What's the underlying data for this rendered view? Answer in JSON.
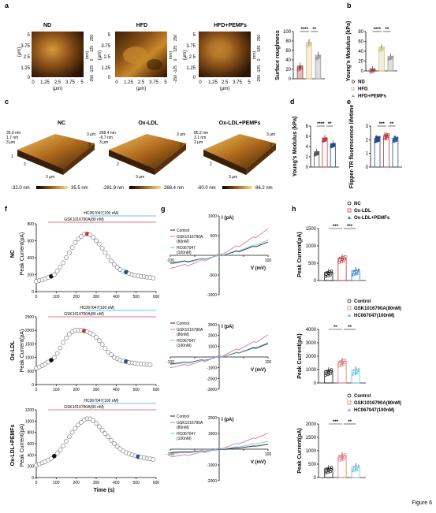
{
  "figure_label": "Figure 6",
  "panels": {
    "a": {
      "letter": "a",
      "titles": [
        "ND",
        "HFD",
        "HFD+PEMFs"
      ],
      "axis_unit": "(μm)",
      "z_unit": "(nm)",
      "xy_ticks": [
        "0",
        "1.25",
        "2.5",
        "3.75",
        "5"
      ],
      "z_ticks": [
        "250",
        "125",
        "0",
        "-125",
        "-250"
      ]
    },
    "b": {
      "letter": "b"
    },
    "c": {
      "letter": "c",
      "titles": [
        "NC",
        "Ox-LDL",
        "Ox-LDL+PEMFs"
      ],
      "heights": [
        {
          "z": "35.5 nm",
          "a": "1.7 nm",
          "b": "3 μm",
          "min": "-32.0 nm",
          "max": "35.5 nm"
        },
        {
          "z": "268.4 nm",
          "a": "-6.7 nm",
          "b": "3 μm",
          "min": "-281.9 nm",
          "max": "268.4 nm"
        },
        {
          "z": "86.2 nm",
          "a": "3.1 nm",
          "b": "3 μm",
          "min": "-80.0 nm",
          "max": "86.2 nm"
        }
      ],
      "axis_ticks": [
        "1",
        "2",
        "3 μm"
      ]
    },
    "d": {
      "letter": "d"
    },
    "e": {
      "letter": "e"
    },
    "f": {
      "letter": "f",
      "row_labels": [
        "NC",
        "Ox-LDL",
        "Ox-LDL+PEMFs"
      ],
      "ylabel": "Peak Current(pA)",
      "xlabel": "Time (s)",
      "drug1": "GSK1016790A(80 nM)",
      "drug2": "HC067047(100 nM)"
    },
    "g": {
      "letter": "g",
      "legend": [
        "Control",
        "GSK1016790A\n(80nM)",
        "HC067047\n(100nM)"
      ],
      "ylabel": "I (pA)",
      "xlabel": "V (mV)"
    },
    "h": {
      "letter": "h",
      "legend_top": [
        "NC",
        "Ox-LDL",
        "Ox-LDL+PEMFs"
      ],
      "legend_rows": [
        "Control",
        "GSK1016790A(80nM)",
        "HC067047(100nM)"
      ],
      "ylabel": "Peak Current(pA)"
    }
  },
  "colors": {
    "control": "#222222",
    "gsk": "#e07a80",
    "hc": "#6ec3e8",
    "nd": "#9b3b3b",
    "hfd": "#d8c58a",
    "pemf": "#9a9a9a",
    "nc_blue": "#1f4e8c",
    "oxldl_red": "#c23a3a",
    "pemf_blue": "#2f7fd6"
  },
  "chart_data": [
    {
      "type": "bar",
      "panel": "a",
      "ylabel": "Surface roughness",
      "categories": [
        "ND",
        "HFD",
        "HFD+PEMFs"
      ],
      "values": [
        27,
        77,
        50
      ],
      "ylim": [
        0,
        100
      ],
      "yticks": [
        0,
        20,
        40,
        60,
        80,
        100
      ],
      "significance": [
        "****",
        "**"
      ]
    },
    {
      "type": "bar",
      "panel": "b",
      "ylabel": "Young's Modulus (kPa)",
      "categories": [
        "ND",
        "HFD",
        "HFD+PEMFs"
      ],
      "values": [
        4,
        48,
        30
      ],
      "ylim": [
        0,
        80
      ],
      "yticks": [
        0,
        20,
        40,
        60,
        80
      ],
      "significance": [
        "****",
        "**"
      ],
      "legend": [
        "ND",
        "HFD",
        "HFD+PEMFs"
      ]
    },
    {
      "type": "bar",
      "panel": "d",
      "ylabel": "Young's Modulus (kPa)",
      "categories": [
        "NC",
        "Ox-LDL",
        "Ox-LDL+PEMFs"
      ],
      "values": [
        3,
        5.7,
        4.6
      ],
      "ylim": [
        0,
        8
      ],
      "yticks": [
        0,
        2,
        4,
        6,
        8
      ],
      "significance": [
        "****",
        "**"
      ]
    },
    {
      "type": "bar",
      "panel": "e",
      "ylabel": "Flipper-TR fluorescence lifetime",
      "categories": [
        "NC",
        "Ox-LDL",
        "Ox-LDL+PEMFs"
      ],
      "values": [
        2.1,
        2.3,
        2.1
      ],
      "ylim": [
        0,
        3
      ],
      "yticks": [
        0,
        1,
        2,
        3
      ],
      "significance": [
        "***",
        "**"
      ]
    },
    {
      "type": "scatter",
      "panel": "f1",
      "x": [
        0,
        15,
        30,
        45,
        60,
        75,
        90,
        105,
        120,
        135,
        150,
        165,
        180,
        195,
        210,
        225,
        240,
        255,
        270,
        285,
        300,
        315,
        330,
        345,
        360,
        375,
        390,
        405,
        420,
        435,
        450,
        465,
        480,
        495,
        510,
        525,
        540,
        555,
        570,
        585
      ],
      "y": [
        120,
        130,
        140,
        150,
        165,
        180,
        200,
        240,
        290,
        340,
        400,
        460,
        520,
        580,
        620,
        650,
        680,
        680,
        670,
        640,
        600,
        560,
        510,
        460,
        410,
        360,
        320,
        290,
        260,
        240,
        230,
        210,
        200,
        190,
        185,
        180,
        175,
        170,
        165,
        160
      ],
      "xlim": [
        0,
        600
      ],
      "ylim": [
        0,
        800
      ],
      "xticks": [
        0,
        100,
        200,
        300,
        400,
        500,
        600
      ],
      "yticks": [
        0,
        200,
        400,
        600,
        800
      ],
      "drug1_span": [
        60,
        600
      ],
      "drug2_span": [
        270,
        600
      ],
      "markers": {
        "black": 75,
        "red": 255,
        "blue": 450
      }
    },
    {
      "type": "scatter",
      "panel": "f2",
      "x": [
        0,
        15,
        30,
        45,
        60,
        75,
        90,
        105,
        120,
        135,
        150,
        165,
        180,
        195,
        210,
        225,
        240,
        255,
        270,
        285,
        300,
        315,
        330,
        345,
        360,
        375,
        390,
        405,
        420,
        435,
        450,
        465,
        480,
        495,
        510,
        525,
        540,
        555,
        570
      ],
      "y": [
        600,
        650,
        700,
        760,
        830,
        900,
        1000,
        1150,
        1350,
        1550,
        1720,
        1860,
        1950,
        2000,
        2010,
        2000,
        1980,
        1950,
        1900,
        1830,
        1740,
        1620,
        1480,
        1330,
        1200,
        1100,
        1000,
        950,
        900,
        870,
        850,
        820,
        800,
        780,
        770,
        760,
        750,
        740,
        730
      ],
      "xlim": [
        0,
        600
      ],
      "ylim": [
        0,
        2500
      ],
      "xticks": [
        0,
        100,
        200,
        300,
        400,
        500,
        600
      ],
      "yticks": [
        0,
        500,
        1000,
        1500,
        2000,
        2500
      ],
      "drug1_span": [
        60,
        600
      ],
      "drug2_span": [
        250,
        600
      ],
      "markers": {
        "black": 75,
        "red": 240,
        "blue": 450
      }
    },
    {
      "type": "scatter",
      "panel": "f3",
      "x": [
        0,
        15,
        30,
        45,
        60,
        75,
        90,
        105,
        120,
        135,
        150,
        165,
        180,
        195,
        210,
        225,
        240,
        255,
        270,
        285,
        300,
        315,
        330,
        345,
        360,
        375,
        390,
        405,
        420,
        435,
        450,
        465,
        480,
        495,
        510,
        525,
        540,
        555,
        570,
        585
      ],
      "y": [
        220,
        240,
        260,
        280,
        310,
        340,
        380,
        430,
        490,
        560,
        640,
        720,
        800,
        870,
        930,
        980,
        1020,
        1040,
        1040,
        1010,
        960,
        900,
        840,
        780,
        720,
        660,
        600,
        550,
        510,
        470,
        440,
        420,
        400,
        385,
        370,
        360,
        350,
        340,
        330,
        320
      ],
      "xlim": [
        0,
        600
      ],
      "ylim": [
        0,
        1200
      ],
      "xticks": [
        0,
        100,
        200,
        300,
        400,
        500,
        600
      ],
      "yticks": [
        0,
        200,
        400,
        600,
        800,
        1000,
        1200
      ],
      "drug1_span": [
        60,
        600
      ],
      "drug2_span": [
        270,
        600
      ],
      "markers": {
        "black": 90,
        "red": 262,
        "blue": 510
      }
    },
    {
      "type": "line",
      "panel": "g1",
      "x": [
        -100,
        100
      ],
      "xlim": [
        -100,
        100
      ],
      "ylim": [
        -1000,
        1000
      ],
      "yticks": [
        -1000,
        -500,
        500,
        1000
      ],
      "xticks": [
        -100,
        -50,
        50,
        100
      ],
      "series": [
        {
          "name": "Control",
          "end": 330,
          "start": -180
        },
        {
          "name": "GSK1016790A (80nM)",
          "end": 660,
          "start": -300
        },
        {
          "name": "HC067047 (100nM)",
          "end": 380,
          "start": -200
        }
      ]
    },
    {
      "type": "line",
      "panel": "g2",
      "xlim": [
        -100,
        100
      ],
      "ylim": [
        -3000,
        3000
      ],
      "yticks": [
        -3000,
        -2000,
        -1000,
        1000,
        2000,
        3000
      ],
      "xticks": [
        -100,
        -50,
        50,
        100
      ],
      "series": [
        {
          "name": "Control",
          "end": 1200,
          "start": -600
        },
        {
          "name": "GSK1016790A (80nM)",
          "end": 2000,
          "start": -900
        },
        {
          "name": "HC067047 (100nM)",
          "end": 1300,
          "start": -650
        }
      ]
    },
    {
      "type": "line",
      "panel": "g3",
      "xlim": [
        -100,
        100
      ],
      "ylim": [
        -2000,
        2000
      ],
      "yticks": [
        -2000,
        -1000,
        1000,
        2000
      ],
      "xticks": [
        -100,
        -50,
        50,
        100
      ],
      "series": [
        {
          "name": "Control",
          "end": 300,
          "start": -200
        },
        {
          "name": "GSK1016790A (80nM)",
          "end": 1000,
          "start": -450
        },
        {
          "name": "HC067047 (100nM)",
          "end": 480,
          "start": -260
        }
      ]
    },
    {
      "type": "bar",
      "panel": "h1",
      "ylabel": "Peak Current(pA)",
      "categories": [
        "NC",
        "Ox-LDL",
        "Ox-LDL+PEMFs"
      ],
      "values": [
        240,
        650,
        280
      ],
      "ylim": [
        0,
        1500
      ],
      "yticks": [
        0,
        500,
        1000,
        1500
      ],
      "significance": [
        "***",
        "***"
      ]
    },
    {
      "type": "bar",
      "panel": "h2",
      "ylabel": "Peak Current(pA)",
      "categories": [
        "Control",
        "GSK1016790A(80nM)",
        "HC067047(100nM)"
      ],
      "values": [
        900,
        1600,
        950
      ],
      "ylim": [
        0,
        4000
      ],
      "yticks": [
        0,
        1000,
        2000,
        3000,
        4000
      ],
      "significance": [
        "**",
        "**"
      ]
    },
    {
      "type": "bar",
      "panel": "h3",
      "ylabel": "Peak Current(pA)",
      "categories": [
        "Control",
        "GSK1016790A(80nM)",
        "HC067047(100nM)"
      ],
      "values": [
        330,
        800,
        400
      ],
      "ylim": [
        0,
        2000
      ],
      "yticks": [
        0,
        500,
        1000,
        1500,
        2000
      ],
      "significance": [
        "***",
        "**"
      ]
    }
  ]
}
